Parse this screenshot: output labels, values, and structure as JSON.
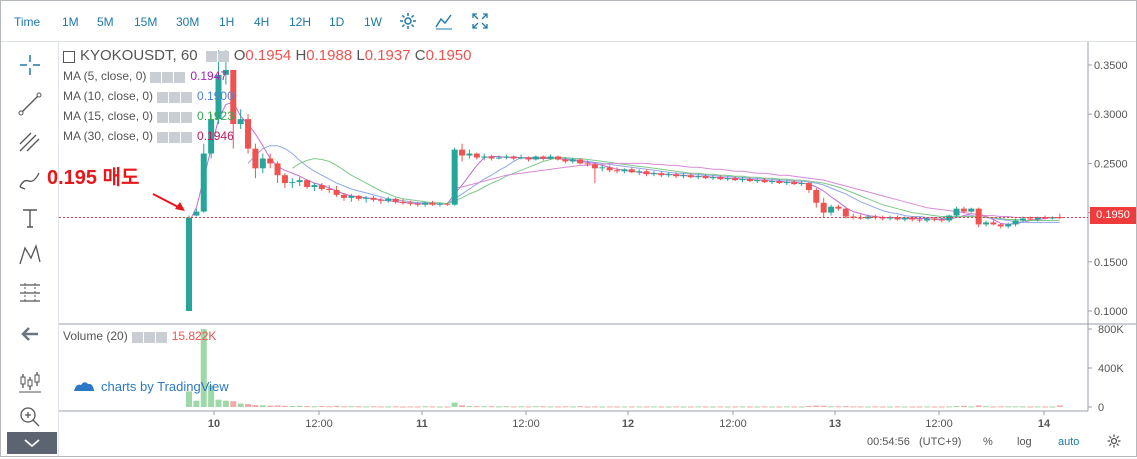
{
  "timeframes": [
    "Time",
    "1M",
    "5M",
    "15M",
    "30M",
    "1H",
    "4H",
    "12H",
    "1D",
    "1W"
  ],
  "active_timeframe": "1H",
  "symbol": {
    "name": "KYOKOUSDT, 60",
    "open_label": "O",
    "open": "0.1954",
    "high_label": "H",
    "high": "0.1988",
    "low_label": "L",
    "low": "0.1937",
    "close_label": "C",
    "close": "0.1950"
  },
  "indicators": [
    {
      "label": "MA (5, close, 0)",
      "value": "0.1947",
      "color": "#9c27b0"
    },
    {
      "label": "MA (10, close, 0)",
      "value": "0.1900",
      "color": "#4f81d6"
    },
    {
      "label": "MA (15, close, 0)",
      "value": "0.1923",
      "color": "#34a853"
    },
    {
      "label": "MA (30, close, 0)",
      "value": "0.1946",
      "color": "#c2185b"
    }
  ],
  "volume": {
    "label": "Volume (20)",
    "value": "15.822K"
  },
  "annotation": "0.195 매도",
  "current_price_label": "0.1950",
  "watermark": "charts by TradingView",
  "status": {
    "time": "00:54:56",
    "timezone": "(UTC+9)",
    "percent": "%",
    "log": "log",
    "auto": "auto"
  },
  "colors": {
    "up": "#26a69a",
    "down": "#ef5350",
    "accent": "#1e78a8",
    "ma5": "#c46bd6",
    "ma10": "#8fa8e8",
    "ma15": "#7fc98a"
  },
  "chart_data": {
    "type": "candlestick",
    "title": "KYOKOUSDT, 60",
    "x_tick_labels": [
      "10",
      "12:00",
      "11",
      "12:00",
      "12",
      "12:00",
      "13",
      "12:00",
      "14"
    ],
    "y_tick_labels": [
      "0.3500",
      "0.3000",
      "0.2500",
      "0.2000",
      "0.1500",
      "0.1000"
    ],
    "ylim": [
      0.09,
      0.36
    ],
    "volume_tick_labels": [
      "800K",
      "400K",
      "0"
    ],
    "volume_ylim": [
      0,
      820000
    ],
    "candles": [
      [
        0.1,
        0.197,
        0.1,
        0.195
      ],
      [
        0.197,
        0.204,
        0.196,
        0.201
      ],
      [
        0.201,
        0.27,
        0.2,
        0.26
      ],
      [
        0.26,
        0.3,
        0.255,
        0.295
      ],
      [
        0.295,
        0.365,
        0.29,
        0.34
      ],
      [
        0.34,
        0.365,
        0.33,
        0.345
      ],
      [
        0.345,
        0.345,
        0.265,
        0.29
      ],
      [
        0.29,
        0.305,
        0.285,
        0.295
      ],
      [
        0.295,
        0.3,
        0.26,
        0.265
      ],
      [
        0.265,
        0.27,
        0.235,
        0.245
      ],
      [
        0.245,
        0.26,
        0.24,
        0.255
      ],
      [
        0.255,
        0.26,
        0.245,
        0.25
      ],
      [
        0.25,
        0.252,
        0.23,
        0.238
      ],
      [
        0.238,
        0.24,
        0.225,
        0.23
      ],
      [
        0.23,
        0.235,
        0.225,
        0.231
      ],
      [
        0.231,
        0.236,
        0.227,
        0.233
      ],
      [
        0.233,
        0.234,
        0.224,
        0.226
      ],
      [
        0.226,
        0.23,
        0.222,
        0.228
      ],
      [
        0.228,
        0.23,
        0.222,
        0.224
      ],
      [
        0.224,
        0.228,
        0.22,
        0.223
      ],
      [
        0.223,
        0.227,
        0.216,
        0.218
      ],
      [
        0.218,
        0.22,
        0.212,
        0.215
      ],
      [
        0.215,
        0.219,
        0.211,
        0.217
      ],
      [
        0.217,
        0.218,
        0.212,
        0.214
      ],
      [
        0.214,
        0.217,
        0.21,
        0.215
      ],
      [
        0.215,
        0.217,
        0.211,
        0.213
      ],
      [
        0.213,
        0.215,
        0.209,
        0.212
      ],
      [
        0.212,
        0.216,
        0.21,
        0.214
      ],
      [
        0.214,
        0.215,
        0.209,
        0.211
      ],
      [
        0.211,
        0.214,
        0.208,
        0.21
      ],
      [
        0.21,
        0.212,
        0.207,
        0.209
      ],
      [
        0.209,
        0.211,
        0.206,
        0.208
      ],
      [
        0.208,
        0.211,
        0.206,
        0.21
      ],
      [
        0.21,
        0.212,
        0.207,
        0.208
      ],
      [
        0.208,
        0.21,
        0.206,
        0.209
      ],
      [
        0.209,
        0.21,
        0.207,
        0.208
      ],
      [
        0.208,
        0.266,
        0.207,
        0.264
      ],
      [
        0.264,
        0.27,
        0.252,
        0.258
      ],
      [
        0.258,
        0.264,
        0.255,
        0.26
      ],
      [
        0.26,
        0.261,
        0.254,
        0.256
      ],
      [
        0.256,
        0.26,
        0.253,
        0.257
      ],
      [
        0.257,
        0.259,
        0.253,
        0.255
      ],
      [
        0.255,
        0.258,
        0.254,
        0.256
      ],
      [
        0.256,
        0.259,
        0.254,
        0.257
      ],
      [
        0.257,
        0.258,
        0.253,
        0.255
      ],
      [
        0.255,
        0.259,
        0.254,
        0.256
      ],
      [
        0.256,
        0.257,
        0.252,
        0.254
      ],
      [
        0.254,
        0.258,
        0.253,
        0.257
      ],
      [
        0.257,
        0.258,
        0.253,
        0.255
      ],
      [
        0.255,
        0.259,
        0.254,
        0.257
      ],
      [
        0.257,
        0.258,
        0.253,
        0.254
      ],
      [
        0.254,
        0.256,
        0.25,
        0.252
      ],
      [
        0.252,
        0.256,
        0.25,
        0.254
      ],
      [
        0.254,
        0.255,
        0.249,
        0.25
      ],
      [
        0.25,
        0.253,
        0.247,
        0.249
      ],
      [
        0.249,
        0.251,
        0.23,
        0.245
      ],
      [
        0.245,
        0.248,
        0.242,
        0.246
      ],
      [
        0.246,
        0.248,
        0.241,
        0.243
      ],
      [
        0.243,
        0.246,
        0.24,
        0.242
      ],
      [
        0.242,
        0.245,
        0.24,
        0.244
      ],
      [
        0.244,
        0.246,
        0.24,
        0.241
      ],
      [
        0.241,
        0.244,
        0.238,
        0.242
      ],
      [
        0.242,
        0.244,
        0.237,
        0.239
      ],
      [
        0.239,
        0.242,
        0.237,
        0.24
      ],
      [
        0.24,
        0.242,
        0.236,
        0.238
      ],
      [
        0.238,
        0.241,
        0.236,
        0.239
      ],
      [
        0.239,
        0.241,
        0.235,
        0.237
      ],
      [
        0.237,
        0.24,
        0.235,
        0.238
      ],
      [
        0.238,
        0.24,
        0.235,
        0.236
      ],
      [
        0.236,
        0.239,
        0.234,
        0.237
      ],
      [
        0.237,
        0.239,
        0.234,
        0.235
      ],
      [
        0.235,
        0.238,
        0.233,
        0.236
      ],
      [
        0.236,
        0.238,
        0.233,
        0.234
      ],
      [
        0.234,
        0.237,
        0.232,
        0.235
      ],
      [
        0.235,
        0.237,
        0.232,
        0.233
      ],
      [
        0.233,
        0.236,
        0.231,
        0.234
      ],
      [
        0.234,
        0.236,
        0.231,
        0.232
      ],
      [
        0.232,
        0.235,
        0.23,
        0.233
      ],
      [
        0.233,
        0.235,
        0.23,
        0.231
      ],
      [
        0.231,
        0.234,
        0.229,
        0.232
      ],
      [
        0.232,
        0.234,
        0.229,
        0.23
      ],
      [
        0.23,
        0.233,
        0.228,
        0.231
      ],
      [
        0.231,
        0.233,
        0.228,
        0.229
      ],
      [
        0.229,
        0.232,
        0.227,
        0.23
      ],
      [
        0.23,
        0.231,
        0.22,
        0.223
      ],
      [
        0.223,
        0.225,
        0.205,
        0.21
      ],
      [
        0.21,
        0.215,
        0.195,
        0.2
      ],
      [
        0.2,
        0.208,
        0.197,
        0.206
      ],
      [
        0.206,
        0.208,
        0.202,
        0.204
      ],
      [
        0.204,
        0.205,
        0.194,
        0.196
      ],
      [
        0.196,
        0.199,
        0.193,
        0.195
      ],
      [
        0.195,
        0.198,
        0.193,
        0.194
      ],
      [
        0.194,
        0.198,
        0.193,
        0.196
      ],
      [
        0.196,
        0.198,
        0.193,
        0.195
      ],
      [
        0.195,
        0.197,
        0.192,
        0.194
      ],
      [
        0.194,
        0.197,
        0.192,
        0.195
      ],
      [
        0.195,
        0.197,
        0.192,
        0.193
      ],
      [
        0.193,
        0.196,
        0.191,
        0.195
      ],
      [
        0.195,
        0.196,
        0.191,
        0.193
      ],
      [
        0.193,
        0.195,
        0.19,
        0.192
      ],
      [
        0.192,
        0.195,
        0.19,
        0.194
      ],
      [
        0.194,
        0.195,
        0.191,
        0.193
      ],
      [
        0.193,
        0.195,
        0.19,
        0.192
      ],
      [
        0.192,
        0.198,
        0.19,
        0.197
      ],
      [
        0.197,
        0.206,
        0.195,
        0.204
      ],
      [
        0.204,
        0.206,
        0.199,
        0.201
      ],
      [
        0.201,
        0.205,
        0.2,
        0.204
      ],
      [
        0.204,
        0.205,
        0.185,
        0.188
      ],
      [
        0.188,
        0.192,
        0.186,
        0.19
      ],
      [
        0.19,
        0.192,
        0.187,
        0.188
      ],
      [
        0.188,
        0.189,
        0.184,
        0.186
      ],
      [
        0.186,
        0.19,
        0.184,
        0.188
      ],
      [
        0.188,
        0.194,
        0.186,
        0.192
      ],
      [
        0.192,
        0.196,
        0.19,
        0.194
      ],
      [
        0.194,
        0.196,
        0.192,
        0.193
      ],
      [
        0.193,
        0.196,
        0.191,
        0.195
      ],
      [
        0.195,
        0.197,
        0.193,
        0.194
      ],
      [
        0.194,
        0.196,
        0.193,
        0.195
      ],
      [
        0.1954,
        0.1988,
        0.1937,
        0.195
      ]
    ],
    "volumes": [
      160,
      65,
      800,
      220,
      75,
      65,
      60,
      35,
      30,
      20,
      18,
      14,
      16,
      12,
      10,
      12,
      9,
      8,
      10,
      8,
      12,
      7,
      8,
      7,
      6,
      7,
      6,
      6,
      7,
      5,
      6,
      5,
      7,
      6,
      5,
      5,
      45,
      18,
      10,
      9,
      8,
      8,
      7,
      8,
      6,
      7,
      6,
      8,
      7,
      6,
      6,
      7,
      6,
      8,
      5,
      6,
      5,
      6,
      5,
      6,
      5,
      6,
      5,
      6,
      5,
      5,
      6,
      5,
      5,
      6,
      5,
      5,
      6,
      5,
      5,
      6,
      5,
      5,
      6,
      5,
      5,
      6,
      5,
      5,
      10,
      14,
      12,
      8,
      7,
      9,
      6,
      6,
      5,
      6,
      5,
      5,
      6,
      5,
      5,
      5,
      6,
      5,
      5,
      6,
      10,
      12,
      6,
      16,
      8,
      6,
      7,
      6,
      7,
      6,
      5,
      6,
      5,
      5,
      16
    ],
    "ma5": [
      0.19,
      0.205,
      0.235,
      0.265,
      0.295,
      0.31,
      0.312,
      0.298,
      0.29,
      0.28,
      0.268,
      0.255,
      0.247,
      0.243,
      0.24,
      0.237,
      0.233,
      0.23,
      0.228,
      0.225,
      0.222,
      0.219,
      0.217,
      0.216,
      0.215,
      0.214,
      0.213,
      0.212,
      0.211,
      0.21,
      0.21,
      0.209,
      0.209,
      0.209,
      0.209,
      0.209,
      0.219,
      0.228,
      0.238,
      0.248,
      0.256,
      0.257,
      0.257,
      0.256,
      0.256,
      0.256,
      0.255,
      0.255,
      0.255,
      0.255,
      0.255,
      0.254,
      0.253,
      0.252,
      0.251,
      0.25,
      0.248,
      0.246,
      0.244,
      0.243,
      0.242,
      0.241,
      0.24,
      0.24,
      0.239,
      0.239,
      0.238,
      0.238,
      0.237,
      0.237,
      0.237,
      0.236,
      0.236,
      0.235,
      0.235,
      0.234,
      0.234,
      0.233,
      0.233,
      0.232,
      0.232,
      0.231,
      0.231,
      0.23,
      0.229,
      0.226,
      0.222,
      0.216,
      0.211,
      0.205,
      0.201,
      0.199,
      0.197,
      0.196,
      0.195,
      0.195,
      0.195,
      0.194,
      0.194,
      0.194,
      0.194,
      0.193,
      0.193,
      0.193,
      0.195,
      0.197,
      0.199,
      0.198,
      0.196,
      0.193,
      0.189,
      0.188,
      0.189,
      0.19,
      0.192,
      0.193,
      0.194,
      0.195,
      0.1947
    ],
    "ma10": [
      null,
      null,
      null,
      null,
      null,
      null,
      null,
      null,
      0.25,
      0.258,
      0.265,
      0.268,
      0.268,
      0.265,
      0.26,
      0.253,
      0.247,
      0.242,
      0.238,
      0.234,
      0.23,
      0.227,
      0.224,
      0.222,
      0.22,
      0.218,
      0.216,
      0.214,
      0.213,
      0.212,
      0.211,
      0.21,
      0.21,
      0.209,
      0.209,
      0.209,
      0.214,
      0.219,
      0.224,
      0.229,
      0.234,
      0.238,
      0.243,
      0.247,
      0.252,
      0.256,
      0.256,
      0.256,
      0.256,
      0.256,
      0.256,
      0.255,
      0.254,
      0.253,
      0.252,
      0.251,
      0.25,
      0.249,
      0.248,
      0.247,
      0.246,
      0.245,
      0.244,
      0.243,
      0.242,
      0.241,
      0.24,
      0.24,
      0.239,
      0.239,
      0.238,
      0.238,
      0.237,
      0.237,
      0.236,
      0.236,
      0.235,
      0.235,
      0.234,
      0.234,
      0.233,
      0.233,
      0.232,
      0.232,
      0.231,
      0.23,
      0.228,
      0.225,
      0.222,
      0.219,
      0.215,
      0.211,
      0.208,
      0.205,
      0.202,
      0.2,
      0.199,
      0.197,
      0.196,
      0.196,
      0.195,
      0.195,
      0.194,
      0.194,
      0.195,
      0.196,
      0.197,
      0.196,
      0.195,
      0.194,
      0.193,
      0.192,
      0.191,
      0.19,
      0.19,
      0.19,
      0.19,
      0.19,
      0.19
    ],
    "ma15": [
      null,
      null,
      null,
      null,
      null,
      null,
      null,
      null,
      null,
      null,
      null,
      null,
      null,
      null,
      0.245,
      0.25,
      0.253,
      0.255,
      0.254,
      0.252,
      0.248,
      0.243,
      0.238,
      0.234,
      0.23,
      0.226,
      0.222,
      0.219,
      0.216,
      0.214,
      0.213,
      0.212,
      0.211,
      0.21,
      0.21,
      0.209,
      0.212,
      0.215,
      0.219,
      0.222,
      0.226,
      0.23,
      0.233,
      0.237,
      0.24,
      0.243,
      0.246,
      0.249,
      0.252,
      0.254,
      0.256,
      0.256,
      0.255,
      0.255,
      0.254,
      0.253,
      0.252,
      0.251,
      0.25,
      0.249,
      0.248,
      0.247,
      0.246,
      0.245,
      0.244,
      0.243,
      0.242,
      0.241,
      0.24,
      0.24,
      0.239,
      0.239,
      0.238,
      0.238,
      0.237,
      0.237,
      0.236,
      0.236,
      0.235,
      0.235,
      0.234,
      0.234,
      0.233,
      0.233,
      0.232,
      0.231,
      0.23,
      0.228,
      0.226,
      0.223,
      0.22,
      0.217,
      0.214,
      0.211,
      0.208,
      0.206,
      0.204,
      0.202,
      0.2,
      0.199,
      0.198,
      0.197,
      0.196,
      0.196,
      0.196,
      0.196,
      0.196,
      0.196,
      0.195,
      0.195,
      0.194,
      0.193,
      0.193,
      0.192,
      0.192,
      0.192,
      0.192,
      0.192,
      0.1923
    ],
    "ma30": [
      null,
      null,
      null,
      null,
      null,
      null,
      null,
      null,
      null,
      null,
      null,
      null,
      null,
      null,
      null,
      null,
      null,
      null,
      null,
      null,
      null,
      null,
      null,
      null,
      null,
      null,
      null,
      null,
      null,
      null,
      null,
      null,
      null,
      null,
      null,
      null,
      0.225,
      0.226,
      0.228,
      0.23,
      0.232,
      0.234,
      0.236,
      0.238,
      0.239,
      0.24,
      0.241,
      0.242,
      0.243,
      0.244,
      0.245,
      0.246,
      0.247,
      0.248,
      0.248,
      0.249,
      0.249,
      0.25,
      0.25,
      0.25,
      0.25,
      0.25,
      0.25,
      0.249,
      0.249,
      0.248,
      0.248,
      0.247,
      0.246,
      0.246,
      0.245,
      0.244,
      0.244,
      0.243,
      0.242,
      0.242,
      0.241,
      0.24,
      0.24,
      0.239,
      0.238,
      0.238,
      0.237,
      0.236,
      0.235,
      0.234,
      0.233,
      0.231,
      0.229,
      0.227,
      0.225,
      0.223,
      0.221,
      0.219,
      0.217,
      0.215,
      0.213,
      0.211,
      0.209,
      0.207,
      0.205,
      0.204,
      0.203,
      0.202,
      0.201,
      0.2,
      0.199,
      0.198,
      0.197,
      0.197,
      0.196,
      0.196,
      0.195,
      0.195,
      0.195,
      0.195,
      0.195,
      0.195,
      0.1946
    ],
    "current_price": 0.195,
    "annotation": {
      "text": "0.195 매도",
      "arrow_to_price": 0.195
    }
  }
}
